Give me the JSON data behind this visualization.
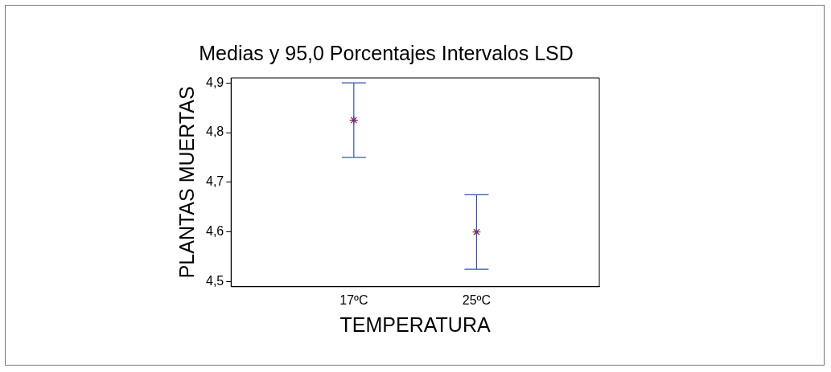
{
  "chart_data": {
    "type": "scatter",
    "title": "Medias y 95,0 Porcentajes Intervalos LSD",
    "xlabel": "TEMPERATURA",
    "ylabel": "PLANTAS MUERTAS",
    "categories": [
      "17ºC",
      "25ºC"
    ],
    "series": [
      {
        "color": "#8b1a4a",
        "values": [
          4.825,
          4.6
        ],
        "errors": [
          0.075,
          0.075
        ]
      }
    ],
    "ylim": [
      4.49,
      4.91
    ],
    "yticks": [
      {
        "value": 4.5,
        "label": "4,5"
      },
      {
        "value": 4.6,
        "label": "4,6"
      },
      {
        "value": 4.7,
        "label": "4,7"
      },
      {
        "value": 4.8,
        "label": "4,8"
      },
      {
        "value": 4.9,
        "label": "4,9"
      }
    ],
    "marker": "cross",
    "grid": false,
    "legend": false
  }
}
